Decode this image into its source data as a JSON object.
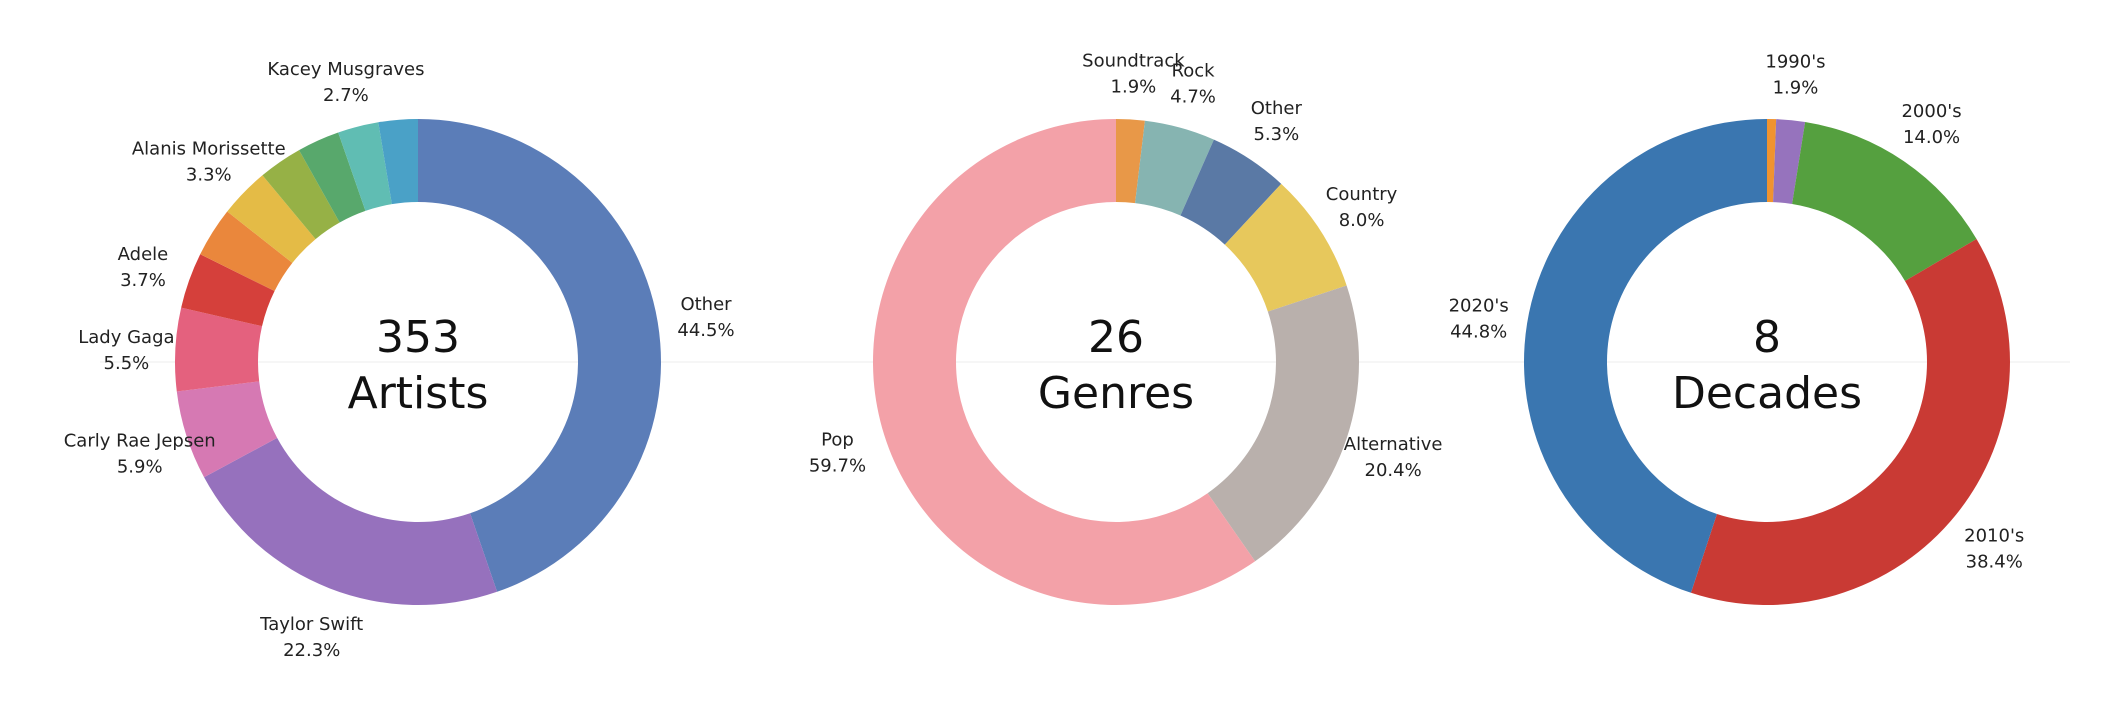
{
  "chart_data": [
    {
      "type": "pie",
      "variant": "donut",
      "center_number": "353",
      "center_text": "Artists",
      "slices": [
        {
          "label": "Other",
          "value": 44.5,
          "pct": "44.5%",
          "color": "#5b7db8",
          "show_label": true
        },
        {
          "label": "Taylor Swift",
          "value": 22.3,
          "pct": "22.3%",
          "color": "#9671bd",
          "show_label": true
        },
        {
          "label": "Carly Rae Jepsen",
          "value": 5.9,
          "pct": "5.9%",
          "color": "#d679b3",
          "show_label": true
        },
        {
          "label": "Lady Gaga",
          "value": 5.5,
          "pct": "5.5%",
          "color": "#e4617e",
          "show_label": true
        },
        {
          "label": "Adele",
          "value": 3.7,
          "pct": "3.7%",
          "color": "#d5403b",
          "show_label": true
        },
        {
          "label": "",
          "value": 3.3,
          "pct": "",
          "color": "#ea873c",
          "show_label": false
        },
        {
          "label": "Alanis Morissette",
          "value": 3.3,
          "pct": "3.3%",
          "color": "#e4bb46",
          "show_label": true
        },
        {
          "label": "",
          "value": 2.9,
          "pct": "",
          "color": "#96b146",
          "show_label": false
        },
        {
          "label": "",
          "value": 2.8,
          "pct": "",
          "color": "#58a86c",
          "show_label": false
        },
        {
          "label": "Kacey Musgraves",
          "value": 2.7,
          "pct": "2.7%",
          "color": "#60bdb3",
          "show_label": true
        },
        {
          "label": "",
          "value": 2.6,
          "pct": "",
          "color": "#4aa1c7",
          "show_label": false
        }
      ]
    },
    {
      "type": "pie",
      "variant": "donut",
      "center_number": "26",
      "center_text": "Genres",
      "slices": [
        {
          "label": "Soundtrack",
          "value": 1.9,
          "pct": "1.9%",
          "color": "#e89848",
          "show_label": true
        },
        {
          "label": "Rock",
          "value": 4.7,
          "pct": "4.7%",
          "color": "#86b4b1",
          "show_label": true
        },
        {
          "label": "Other",
          "value": 5.3,
          "pct": "5.3%",
          "color": "#5a79a5",
          "show_label": true
        },
        {
          "label": "Country",
          "value": 8.0,
          "pct": "8.0%",
          "color": "#e7c85c",
          "show_label": true
        },
        {
          "label": "Alternative",
          "value": 20.4,
          "pct": "20.4%",
          "color": "#b9b0ac",
          "show_label": true
        },
        {
          "label": "Pop",
          "value": 59.7,
          "pct": "59.7%",
          "color": "#f3a1a8",
          "show_label": true
        }
      ]
    },
    {
      "type": "pie",
      "variant": "donut",
      "center_number": "8",
      "center_text": "Decades",
      "slices": [
        {
          "label": "",
          "value": 0.6,
          "pct": "",
          "color": "#f0932f",
          "show_label": false
        },
        {
          "label": "1990's",
          "value": 1.9,
          "pct": "1.9%",
          "color": "#9673bd",
          "show_label": true
        },
        {
          "label": "2000's",
          "value": 14.0,
          "pct": "14.0%",
          "color": "#55a03f",
          "show_label": true
        },
        {
          "label": "2010's",
          "value": 38.4,
          "pct": "38.4%",
          "color": "#c93a34",
          "show_label": true
        },
        {
          "label": "2020's",
          "value": 44.8,
          "pct": "44.8%",
          "color": "#3a76b0",
          "show_label": true
        }
      ]
    }
  ]
}
